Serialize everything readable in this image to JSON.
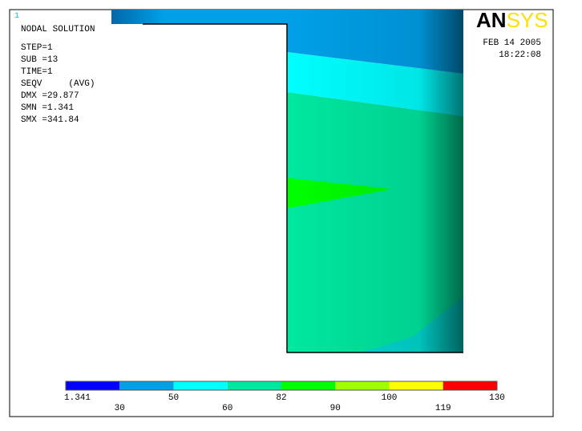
{
  "window_number": "1",
  "info": {
    "title": "NODAL SOLUTION",
    "lines": [
      "STEP=1",
      "SUB =13",
      "TIME=1",
      "SEQV     (AVG)",
      "DMX =29.877",
      "SMN =1.341",
      "SMX =341.84"
    ]
  },
  "logo": {
    "an": "AN",
    "sys": "SYS"
  },
  "date": "FEB 14 2005",
  "time": "18:22:08",
  "legend": {
    "labels": [
      "1.341",
      "30",
      "50",
      "60",
      "82",
      "90",
      "100",
      "119",
      "130"
    ],
    "colors": [
      "#0000ff",
      "#00a0e8",
      "#00ffff",
      "#00e8a0",
      "#00ff00",
      "#a0ff00",
      "#ffff00",
      "#ff0000"
    ]
  }
}
